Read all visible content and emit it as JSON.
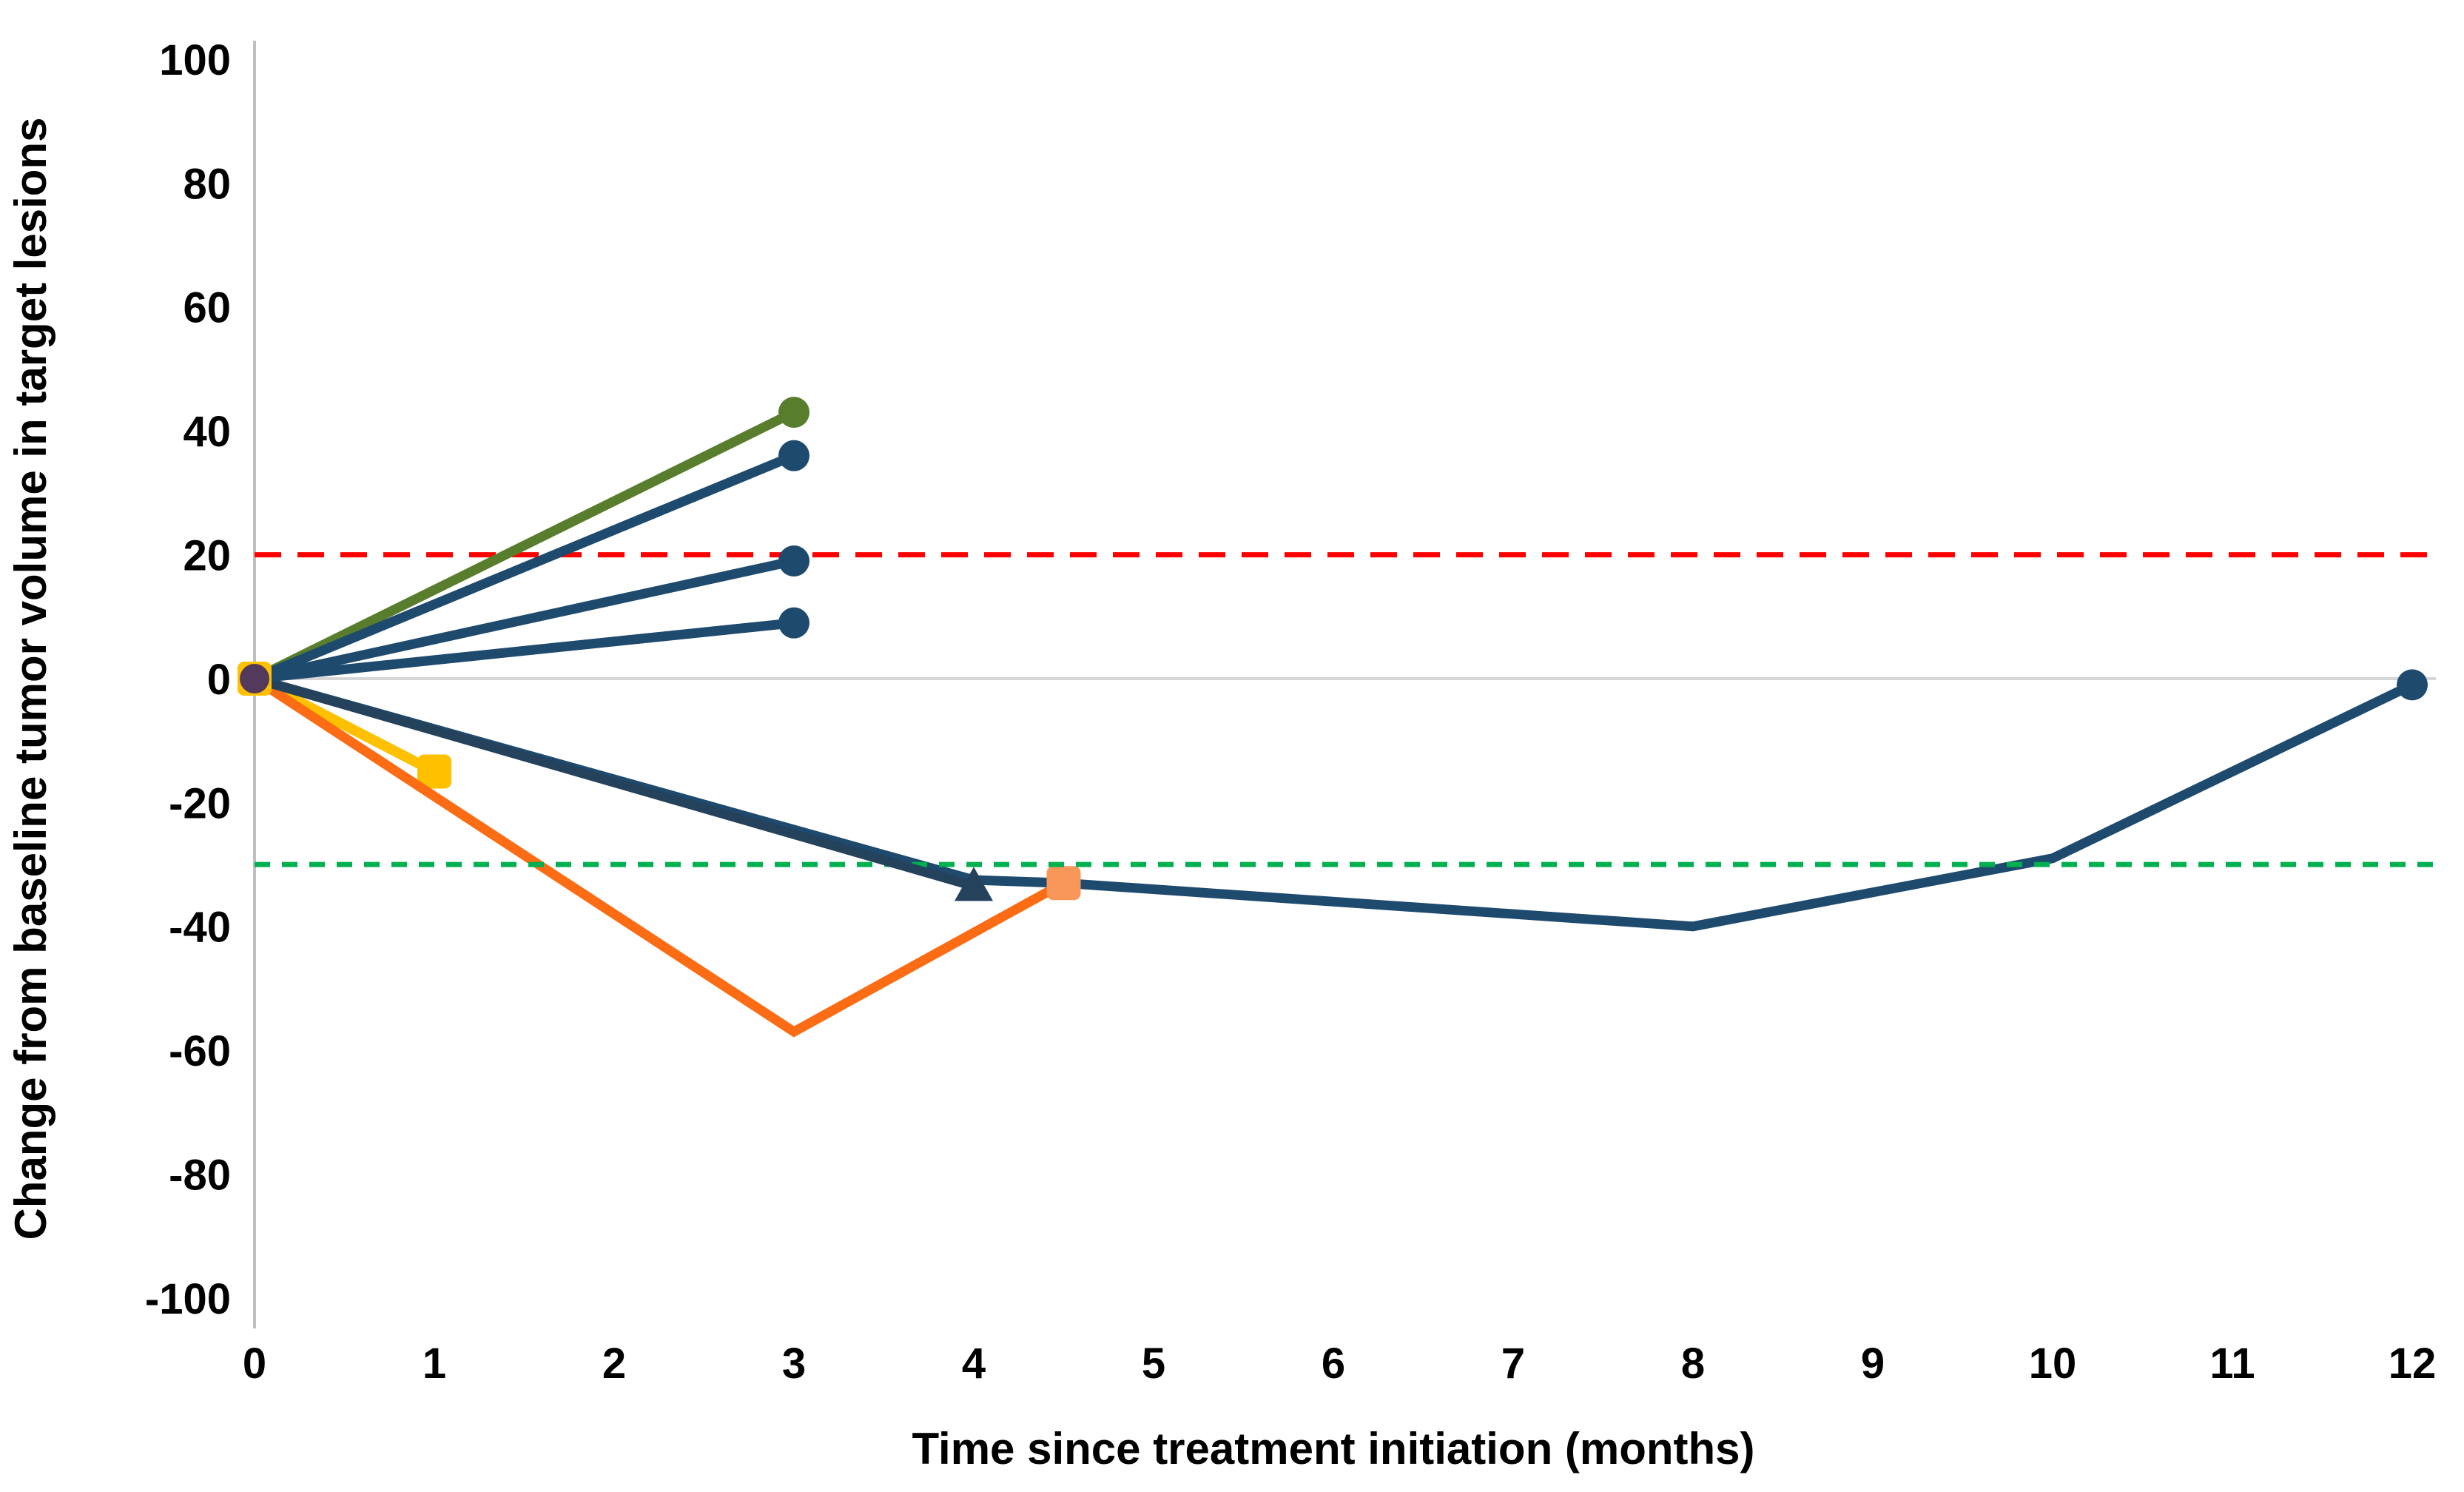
{
  "chart_data": {
    "type": "line",
    "title": "",
    "xlabel": "Time since treatment initiation (months)",
    "ylabel": "Change from baseline tumor volume in target lesions",
    "xlim": [
      0,
      12
    ],
    "ylim": [
      -100,
      100
    ],
    "x_ticks": [
      0,
      1,
      2,
      3,
      4,
      5,
      6,
      7,
      8,
      9,
      10,
      11,
      12
    ],
    "y_ticks": [
      100,
      80,
      60,
      40,
      20,
      0,
      -20,
      -40,
      -60,
      -80,
      -100
    ],
    "grid": false,
    "legend": "none",
    "colors": {
      "navy": "#1E4A6E",
      "navy_dark": "#24425C",
      "green_line": "#587E2D",
      "yellow": "#FFC000",
      "orange_line": "#FB6C15",
      "orange_marker": "#F9975A",
      "purple_origin": "#533A5C",
      "red_reference": "#FF0000",
      "green_reference": "#00B050",
      "zero_line": "#D6D6D6",
      "axis_line": "#BFBFBF"
    },
    "reference_lines": [
      {
        "id": "zero",
        "name": "zero-baseline-line",
        "y": 0,
        "color_key": "zero_line",
        "style": "solid"
      },
      {
        "id": "red",
        "name": "progression-threshold-line",
        "y": 20,
        "color_key": "red_reference",
        "style": "dashed"
      },
      {
        "id": "green",
        "name": "response-threshold-line",
        "y": -30,
        "color_key": "green_reference",
        "style": "dashed"
      }
    ],
    "series": [
      {
        "id": "navy-long",
        "name": "patient-navy-long-follow-up",
        "color_key": "navy",
        "marker": "circle",
        "points": [
          [
            0,
            0
          ],
          [
            4,
            -32.5
          ],
          [
            4.5,
            -33
          ],
          [
            8,
            -40
          ],
          [
            10,
            -29
          ],
          [
            12,
            -1
          ]
        ]
      },
      {
        "id": "yellow",
        "name": "patient-yellow",
        "color_key": "yellow",
        "marker": "square",
        "points": [
          [
            0,
            0
          ],
          [
            1,
            -15
          ]
        ]
      },
      {
        "id": "orange",
        "name": "patient-orange",
        "color_key": "orange_line",
        "marker": "square",
        "marker_color_key": "orange_marker",
        "points": [
          [
            0,
            0
          ],
          [
            3,
            -57
          ],
          [
            4.5,
            -33
          ]
        ]
      },
      {
        "id": "triangle",
        "name": "patient-navy-triangle",
        "color_key": "navy_dark",
        "marker": "triangle",
        "points": [
          [
            0,
            0
          ],
          [
            4,
            -33.5
          ]
        ]
      },
      {
        "id": "green",
        "name": "patient-green",
        "color_key": "green_line",
        "marker": "circle",
        "points": [
          [
            0,
            0
          ],
          [
            3,
            43
          ]
        ]
      },
      {
        "id": "navy-a",
        "name": "patient-navy-a",
        "color_key": "navy",
        "marker": "circle",
        "points": [
          [
            0,
            0
          ],
          [
            3,
            36
          ]
        ]
      },
      {
        "id": "navy-b",
        "name": "patient-navy-b",
        "color_key": "navy",
        "marker": "circle",
        "points": [
          [
            0,
            0
          ],
          [
            3,
            19
          ]
        ]
      },
      {
        "id": "navy-c",
        "name": "patient-navy-c",
        "color_key": "navy",
        "marker": "circle",
        "points": [
          [
            0,
            0
          ],
          [
            3,
            9
          ]
        ]
      },
      {
        "id": "origin-square",
        "name": "baseline-origin-square-marker",
        "color_key": "yellow",
        "marker": "square",
        "line": false,
        "points": [
          [
            0,
            0
          ]
        ]
      },
      {
        "id": "origin-circle",
        "name": "baseline-origin-circle-marker",
        "color_key": "purple_origin",
        "marker": "circle",
        "line": false,
        "points": [
          [
            0,
            0
          ]
        ]
      }
    ],
    "draw_order": [
      "ref:zero",
      "ref:red",
      "series:navy-long",
      "series:yellow",
      "series:orange",
      "ref:green",
      "series:triangle",
      "series:green",
      "series:navy-a",
      "series:navy-b",
      "series:navy-c",
      "series:origin-square",
      "series:origin-circle"
    ]
  }
}
